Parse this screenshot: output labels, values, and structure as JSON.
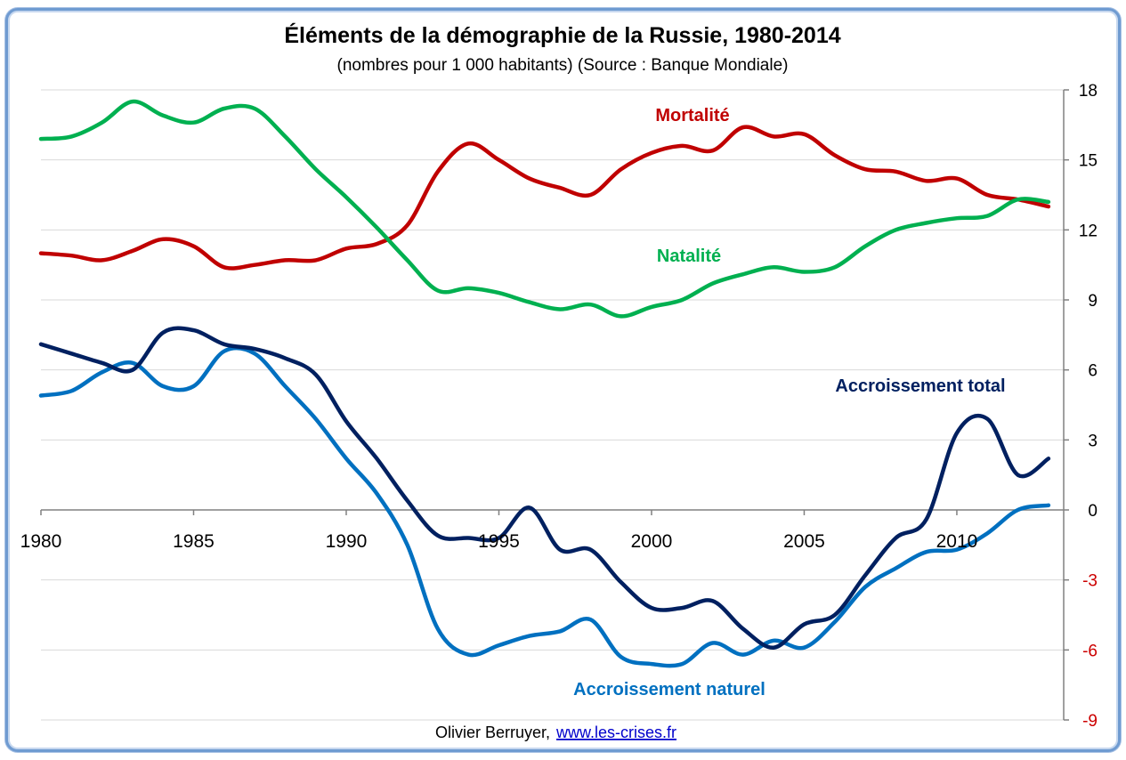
{
  "chart_data": {
    "type": "line",
    "title": "Éléments de la démographie de la Russie, 1980-2014",
    "subtitle": "(nombres pour 1 000 habitants) (Source : Banque Mondiale)",
    "x": [
      1980,
      1981,
      1982,
      1983,
      1984,
      1985,
      1986,
      1987,
      1988,
      1989,
      1990,
      1991,
      1992,
      1993,
      1994,
      1995,
      1996,
      1997,
      1998,
      1999,
      2000,
      2001,
      2002,
      2003,
      2004,
      2005,
      2006,
      2007,
      2008,
      2009,
      2010,
      2011,
      2012,
      2013
    ],
    "xticks": [
      1980,
      1985,
      1990,
      1995,
      2000,
      2005,
      2010
    ],
    "yticks": [
      18,
      15,
      12,
      9,
      6,
      3,
      0,
      -3,
      -6,
      -9
    ],
    "ylim": [
      -9,
      18
    ],
    "xlim": [
      1980,
      2013.5
    ],
    "grid": true,
    "colors": {
      "positive_ticks": "#000000",
      "negative_ticks": "#cc0000"
    },
    "series": [
      {
        "name": "Mortalité",
        "color": "#c00000",
        "values": [
          11.0,
          10.9,
          10.7,
          11.1,
          11.6,
          11.3,
          10.4,
          10.5,
          10.7,
          10.7,
          11.2,
          11.4,
          12.2,
          14.5,
          15.7,
          15.0,
          14.2,
          13.8,
          13.5,
          14.6,
          15.3,
          15.6,
          15.4,
          16.4,
          16.0,
          16.1,
          15.2,
          14.6,
          14.5,
          14.1,
          14.2,
          13.5,
          13.3,
          13.0
        ]
      },
      {
        "name": "Natalité",
        "color": "#00b050",
        "values": [
          15.9,
          16.0,
          16.6,
          17.5,
          16.9,
          16.6,
          17.2,
          17.2,
          16.0,
          14.6,
          13.4,
          12.1,
          10.7,
          9.4,
          9.5,
          9.3,
          8.9,
          8.6,
          8.8,
          8.3,
          8.7,
          9.0,
          9.7,
          10.1,
          10.4,
          10.2,
          10.4,
          11.3,
          12.0,
          12.3,
          12.5,
          12.6,
          13.3,
          13.2
        ]
      },
      {
        "name": "Accroissement total",
        "color": "#002060",
        "values": [
          7.1,
          6.7,
          6.3,
          6.0,
          7.6,
          7.7,
          7.1,
          6.9,
          6.5,
          5.8,
          3.8,
          2.2,
          0.4,
          -1.1,
          -1.2,
          -1.2,
          0.1,
          -1.7,
          -1.7,
          -3.1,
          -4.2,
          -4.2,
          -3.9,
          -5.1,
          -5.9,
          -4.9,
          -4.5,
          -2.8,
          -1.2,
          -0.4,
          3.3,
          3.9,
          1.5,
          2.2
        ]
      },
      {
        "name": "Accroissement naturel",
        "color": "#0070c0",
        "values": [
          4.9,
          5.1,
          5.9,
          6.3,
          5.3,
          5.3,
          6.8,
          6.7,
          5.3,
          3.9,
          2.2,
          0.7,
          -1.5,
          -5.1,
          -6.2,
          -5.8,
          -5.4,
          -5.2,
          -4.7,
          -6.3,
          -6.6,
          -6.6,
          -5.7,
          -6.2,
          -5.6,
          -5.9,
          -4.8,
          -3.3,
          -2.5,
          -1.8,
          -1.7,
          -1.0,
          0.0,
          0.2
        ]
      }
    ]
  },
  "annotations": {
    "mortalite": "Mortalité",
    "natalite": "Natalité",
    "accroissement_total": "Accroissement total",
    "accroissement_naturel": "Accroissement naturel"
  },
  "credit": {
    "author": "Olivier Berruyer,",
    "link": "www.les-crises.fr"
  }
}
